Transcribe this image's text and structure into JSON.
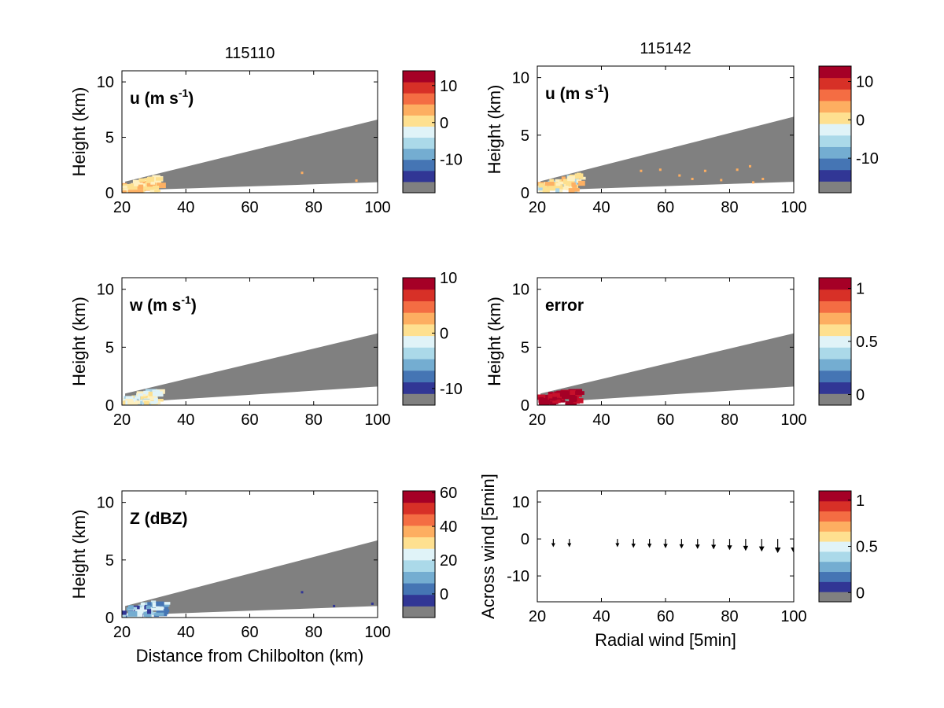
{
  "chart_data": [
    {
      "type": "heatmap",
      "title": "115110",
      "label_main": "u (m s",
      "label_sup": "-1",
      "label_tail": ")",
      "ylabel": "Height (km)",
      "xlabel": "",
      "xlim": [
        20,
        100
      ],
      "ylim": [
        0,
        11
      ],
      "xticks": [
        "20",
        "40",
        "60",
        "80",
        "100"
      ],
      "yticks": [
        "0",
        "5",
        "10"
      ],
      "colorbar": {
        "ticks": [
          "10",
          "0",
          "-10"
        ],
        "tick_values": [
          10,
          0,
          -10
        ],
        "range": [
          -19,
          14
        ]
      },
      "wedge": {
        "x0": 21,
        "x1": 100,
        "bottom": [
          0.2,
          0.95
        ],
        "top": [
          1.0,
          6.6
        ]
      },
      "echo": {
        "x_range": [
          20,
          31
        ],
        "h_range": [
          0.2,
          1.7
        ],
        "colors": [
          "#fde08f",
          "#fdb063",
          "#fde08f",
          "#fef0c0"
        ]
      },
      "speckles": [
        [
          76,
          1.9
        ],
        [
          93,
          1.2
        ]
      ]
    },
    {
      "type": "heatmap",
      "title": "115142",
      "label_main": "u (m s",
      "label_sup": "-1",
      "label_tail": ")",
      "ylabel": "Height (km)",
      "xlabel": "",
      "xlim": [
        20,
        100
      ],
      "ylim": [
        0,
        11
      ],
      "xticks": [
        "20",
        "40",
        "60",
        "80",
        "100"
      ],
      "yticks": [
        "0",
        "5",
        "10"
      ],
      "colorbar": {
        "ticks": [
          "10",
          "0",
          "-10"
        ],
        "tick_values": [
          10,
          0,
          -10
        ],
        "range": [
          -19,
          14
        ]
      },
      "wedge": {
        "x0": 21,
        "x1": 100,
        "bottom": [
          0.2,
          0.95
        ],
        "top": [
          1.0,
          6.6
        ]
      },
      "echo": {
        "x_range": [
          20,
          33
        ],
        "h_range": [
          0.2,
          1.9
        ],
        "colors": [
          "#fde08f",
          "#fdb063",
          "#fde08f",
          "#fef0c0",
          "#aad4e8"
        ]
      },
      "speckles": [
        [
          52,
          2.0
        ],
        [
          58,
          2.1
        ],
        [
          64,
          1.6
        ],
        [
          68,
          1.3
        ],
        [
          72,
          2.0
        ],
        [
          77,
          1.2
        ],
        [
          82,
          2.1
        ],
        [
          86,
          2.4
        ],
        [
          87,
          1.0
        ],
        [
          90,
          1.3
        ]
      ]
    },
    {
      "type": "heatmap",
      "title": "",
      "label_main": "w (m s",
      "label_sup": "-1",
      "label_tail": ")",
      "ylabel": "Height (km)",
      "xlabel": "",
      "xlim": [
        20,
        100
      ],
      "ylim": [
        0,
        11
      ],
      "xticks": [
        "20",
        "40",
        "60",
        "80",
        "100"
      ],
      "yticks": [
        "0",
        "5",
        "10"
      ],
      "colorbar": {
        "ticks": [
          "10",
          "0",
          "-10"
        ],
        "tick_values": [
          10,
          0,
          -10
        ],
        "range": [
          -13,
          10
        ]
      },
      "wedge": {
        "x0": 21,
        "x1": 100,
        "bottom": [
          0.2,
          1.6
        ],
        "top": [
          1.0,
          6.2
        ]
      },
      "echo": {
        "x_range": [
          20,
          31
        ],
        "h_range": [
          0.2,
          1.5
        ],
        "colors": [
          "#e0f3f8",
          "#aad4e8",
          "#fde08f",
          "#e0f3f8",
          "#fef0c0"
        ]
      },
      "speckles": []
    },
    {
      "type": "heatmap",
      "title": "",
      "label_main": "error",
      "label_sup": "",
      "label_tail": "",
      "ylabel": "Height (km)",
      "xlabel": "",
      "xlim": [
        20,
        100
      ],
      "ylim": [
        0,
        11
      ],
      "xticks": [
        "20",
        "40",
        "60",
        "80",
        "100"
      ],
      "yticks": [
        "0",
        "5",
        "10"
      ],
      "colorbar": {
        "ticks": [
          "1",
          "0.5",
          "0"
        ],
        "tick_values": [
          1,
          0.5,
          0
        ],
        "range": [
          -0.1,
          1.1
        ]
      },
      "wedge": {
        "x0": 21,
        "x1": 100,
        "bottom": [
          0.2,
          1.6
        ],
        "top": [
          1.0,
          6.2
        ]
      },
      "echo": {
        "x_range": [
          20,
          32
        ],
        "h_range": [
          0.3,
          1.4
        ],
        "colors": [
          "#a50026",
          "#a50026",
          "#c7102b"
        ]
      },
      "speckles": []
    },
    {
      "type": "heatmap",
      "title": "",
      "label_main": "Z (dBZ)",
      "label_sup": "",
      "label_tail": "",
      "ylabel": "Height (km)",
      "xlabel": "Distance from Chilbolton (km)",
      "xlim": [
        20,
        100
      ],
      "ylim": [
        0,
        11
      ],
      "xticks": [
        "20",
        "40",
        "60",
        "80",
        "100"
      ],
      "yticks": [
        "0",
        "5",
        "10"
      ],
      "colorbar": {
        "ticks": [
          "60",
          "40",
          "20",
          "0"
        ],
        "tick_values": [
          60,
          40,
          20,
          0
        ],
        "range": [
          -14,
          61
        ]
      },
      "wedge": {
        "x0": 21,
        "x1": 100,
        "bottom": [
          0.2,
          1.0
        ],
        "top": [
          1.0,
          6.7
        ]
      },
      "echo": {
        "x_range": [
          20,
          33
        ],
        "h_range": [
          0.2,
          1.5
        ],
        "colors": [
          "#4575b4",
          "#aad4e8",
          "#313695",
          "#74add1",
          "#e0f3f8"
        ]
      },
      "speckles": [
        [
          76,
          2.3
        ],
        [
          86,
          1.1
        ],
        [
          98,
          1.3
        ]
      ]
    },
    {
      "type": "quiver",
      "title": "",
      "ylabel": "Across wind [5min]",
      "xlabel": "Radial wind [5min]",
      "xlim": [
        20,
        100
      ],
      "ylim": [
        -17,
        13
      ],
      "xticks": [
        "20",
        "40",
        "60",
        "80",
        "100"
      ],
      "yticks": [
        "10",
        "0",
        "-10"
      ],
      "ytick_values": [
        10,
        0,
        -10
      ],
      "colorbar": {
        "ticks": [
          "1",
          "0.5",
          "0"
        ],
        "tick_values": [
          1,
          0.5,
          0
        ],
        "range": [
          -0.1,
          1.1
        ]
      },
      "arrows": [
        {
          "x": 25,
          "y": 0,
          "v": -2.0
        },
        {
          "x": 30,
          "y": 0,
          "v": -2.0
        },
        {
          "x": 45,
          "y": 0,
          "v": -2.0
        },
        {
          "x": 50,
          "y": 0,
          "v": -2.2
        },
        {
          "x": 55,
          "y": 0,
          "v": -2.2
        },
        {
          "x": 60,
          "y": 0,
          "v": -2.3
        },
        {
          "x": 65,
          "y": 0,
          "v": -2.4
        },
        {
          "x": 70,
          "y": 0,
          "v": -2.5
        },
        {
          "x": 75,
          "y": 0,
          "v": -2.6
        },
        {
          "x": 80,
          "y": 0,
          "v": -2.8
        },
        {
          "x": 85,
          "y": 0,
          "v": -3.0
        },
        {
          "x": 90,
          "y": 0,
          "v": -3.2
        },
        {
          "x": 95,
          "y": 0,
          "v": -3.6
        },
        {
          "x": 100,
          "y": 0,
          "v": -3.6
        }
      ]
    }
  ],
  "colors": {
    "palette": [
      "#808080",
      "#313695",
      "#4575b4",
      "#74add1",
      "#abd9e9",
      "#e0f3f8",
      "#fee090",
      "#fdae61",
      "#f46d43",
      "#d73027",
      "#a50026"
    ],
    "missing": "#808080",
    "axis": "#000000"
  }
}
